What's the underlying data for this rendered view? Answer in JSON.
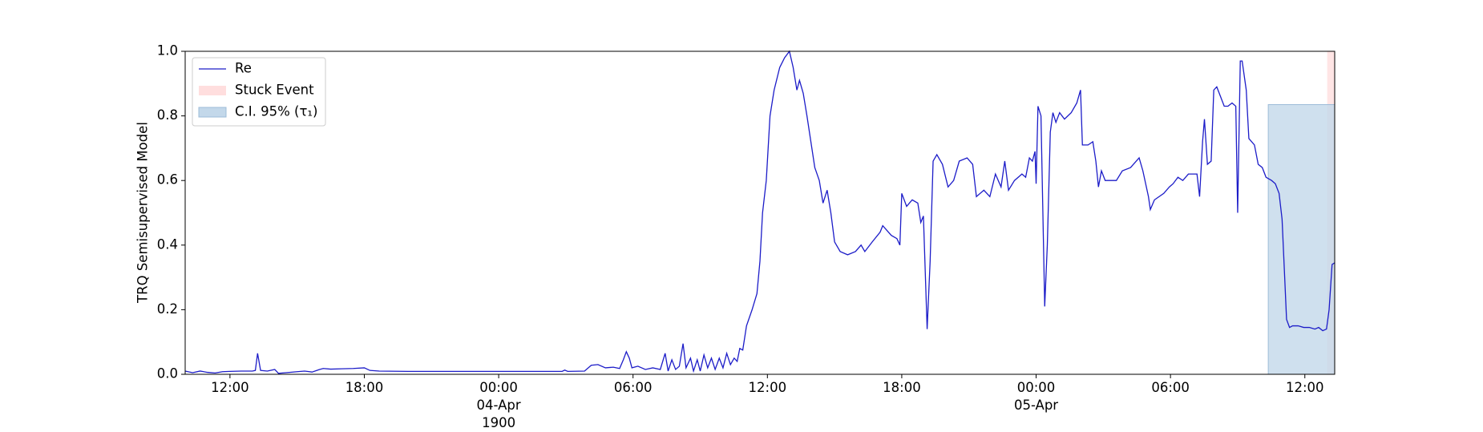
{
  "chart_data": {
    "type": "line",
    "y_label": "TRQ Semisupervised Model",
    "xlim": [
      "1900-04-03 10:00",
      "1900-04-05 13:20"
    ],
    "xticks": [
      {
        "value": "1900-04-03 12:00",
        "label": "12:00"
      },
      {
        "value": "1900-04-03 18:00",
        "label": "18:00"
      },
      {
        "value": "1900-04-04 00:00",
        "label": "00:00\n04-Apr\n1900"
      },
      {
        "value": "1900-04-04 06:00",
        "label": "06:00"
      },
      {
        "value": "1900-04-04 12:00",
        "label": "12:00"
      },
      {
        "value": "1900-04-04 18:00",
        "label": "18:00"
      },
      {
        "value": "1900-04-05 00:00",
        "label": "00:00\n05-Apr"
      },
      {
        "value": "1900-04-05 06:00",
        "label": "06:00"
      },
      {
        "value": "1900-04-05 12:00",
        "label": "12:00"
      }
    ],
    "ylim": [
      0,
      1
    ],
    "yticks": [
      {
        "value": 0,
        "label": "0.0"
      },
      0.2,
      0.4,
      0.6,
      0.8,
      {
        "value": 1,
        "label": "1.0"
      }
    ],
    "legend": "upper left",
    "x": [
      "1900-04-03 10:00",
      "1900-04-03 10:20",
      "1900-04-03 10:40",
      "1900-04-03 11:00",
      "1900-04-03 11:20",
      "1900-04-03 11:40",
      "1900-04-03 12:00",
      "1900-04-03 12:30",
      "1900-04-03 13:00",
      "1900-04-03 13:08",
      "1900-04-03 13:14",
      "1900-04-03 13:22",
      "1900-04-03 13:40",
      "1900-04-03 14:00",
      "1900-04-03 14:10",
      "1900-04-03 14:30",
      "1900-04-03 15:00",
      "1900-04-03 15:20",
      "1900-04-03 15:40",
      "1900-04-03 16:00",
      "1900-04-03 16:10",
      "1900-04-03 16:30",
      "1900-04-03 17:00",
      "1900-04-03 17:30",
      "1900-04-03 18:00",
      "1900-04-03 18:15",
      "1900-04-03 18:40",
      "1900-04-03 20:00",
      "1900-04-03 22:00",
      "1900-04-04 00:00",
      "1900-04-04 02:00",
      "1900-04-04 02:50",
      "1900-04-04 02:57",
      "1900-04-04 03:05",
      "1900-04-04 03:50",
      "1900-04-04 04:08",
      "1900-04-04 04:26",
      "1900-04-04 04:46",
      "1900-04-04 05:07",
      "1900-04-04 05:24",
      "1900-04-04 05:34",
      "1900-04-04 05:42",
      "1900-04-04 05:50",
      "1900-04-04 05:57",
      "1900-04-04 06:13",
      "1900-04-04 06:33",
      "1900-04-04 06:53",
      "1900-04-04 07:13",
      "1900-04-04 07:26",
      "1900-04-04 07:34",
      "1900-04-04 07:44",
      "1900-04-04 07:54",
      "1900-04-04 08:04",
      "1900-04-04 08:14",
      "1900-04-04 08:22",
      "1900-04-04 08:34",
      "1900-04-04 08:42",
      "1900-04-04 08:52",
      "1900-04-04 09:00",
      "1900-04-04 09:10",
      "1900-04-04 09:20",
      "1900-04-04 09:30",
      "1900-04-04 09:40",
      "1900-04-04 09:51",
      "1900-04-04 10:01",
      "1900-04-04 10:11",
      "1900-04-04 10:21",
      "1900-04-04 10:31",
      "1900-04-04 10:39",
      "1900-04-04 10:46",
      "1900-04-04 10:54",
      "1900-04-04 11:04",
      "1900-04-04 11:19",
      "1900-04-04 11:32",
      "1900-04-04 11:40",
      "1900-04-04 11:47",
      "1900-04-04 11:57",
      "1900-04-04 12:07",
      "1900-04-04 12:18",
      "1900-04-04 12:33",
      "1900-04-04 12:46",
      "1900-04-04 12:59",
      "1900-04-04 13:09",
      "1900-04-04 13:19",
      "1900-04-04 13:26",
      "1900-04-04 13:36",
      "1900-04-04 13:46",
      "1900-04-04 14:07",
      "1900-04-04 14:19",
      "1900-04-04 14:29",
      "1900-04-04 14:40",
      "1900-04-04 14:50",
      "1900-04-04 15:00",
      "1900-04-04 15:15",
      "1900-04-04 15:35",
      "1900-04-04 15:56",
      "1900-04-04 16:11",
      "1900-04-04 16:21",
      "1900-04-04 16:41",
      "1900-04-04 17:02",
      "1900-04-04 17:09",
      "1900-04-04 17:32",
      "1900-04-04 17:47",
      "1900-04-04 17:55",
      "1900-04-04 18:00",
      "1900-04-04 18:13",
      "1900-04-04 18:28",
      "1900-04-04 18:43",
      "1900-04-04 18:51",
      "1900-04-04 18:58",
      "1900-04-04 19:08",
      "1900-04-04 19:16",
      "1900-04-04 19:24",
      "1900-04-04 19:34",
      "1900-04-04 19:49",
      "1900-04-04 20:04",
      "1900-04-04 20:19",
      "1900-04-04 20:34",
      "1900-04-04 20:55",
      "1900-04-04 21:10",
      "1900-04-04 21:20",
      "1900-04-04 21:40",
      "1900-04-04 21:56",
      "1900-04-04 22:11",
      "1900-04-04 22:26",
      "1900-04-04 22:36",
      "1900-04-04 22:46",
      "1900-04-04 23:02",
      "1900-04-04 23:22",
      "1900-04-04 23:32",
      "1900-04-04 23:42",
      "1900-04-04 23:50",
      "1900-04-04 23:57",
      "1900-04-05 00:00",
      "1900-04-05 00:05",
      "1900-04-05 00:13",
      "1900-04-05 00:23",
      "1900-04-05 00:30",
      "1900-04-05 00:38",
      "1900-04-05 00:45",
      "1900-04-05 00:53",
      "1900-04-05 01:03",
      "1900-04-05 01:16",
      "1900-04-05 01:34",
      "1900-04-05 01:49",
      "1900-04-05 01:59",
      "1900-04-05 02:04",
      "1900-04-05 02:19",
      "1900-04-05 02:32",
      "1900-04-05 02:40",
      "1900-04-05 02:47",
      "1900-04-05 02:55",
      "1900-04-05 03:05",
      "1900-04-05 03:23",
      "1900-04-05 03:35",
      "1900-04-05 03:51",
      "1900-04-05 04:13",
      "1900-04-05 04:36",
      "1900-04-05 04:46",
      "1900-04-05 05:01",
      "1900-04-05 05:06",
      "1900-04-05 05:17",
      "1900-04-05 05:42",
      "1900-04-05 05:57",
      "1900-04-05 06:07",
      "1900-04-05 06:20",
      "1900-04-05 06:33",
      "1900-04-05 06:48",
      "1900-04-05 07:03",
      "1900-04-05 07:11",
      "1900-04-05 07:18",
      "1900-04-05 07:26",
      "1900-04-05 07:31",
      "1900-04-05 07:39",
      "1900-04-05 07:49",
      "1900-04-05 07:56",
      "1900-04-05 08:04",
      "1900-04-05 08:14",
      "1900-04-05 08:24",
      "1900-04-05 08:34",
      "1900-04-05 08:45",
      "1900-04-05 08:55",
      "1900-04-05 09:00",
      "1900-04-05 09:07",
      "1900-04-05 09:12",
      "1900-04-05 09:23",
      "1900-04-05 09:30",
      "1900-04-05 09:45",
      "1900-04-05 09:55",
      "1900-04-05 10:06",
      "1900-04-05 10:16",
      "1900-04-05 10:31",
      "1900-04-05 10:41",
      "1900-04-05 10:51",
      "1900-04-05 10:59",
      "1900-04-05 11:06",
      "1900-04-05 11:11",
      "1900-04-05 11:19",
      "1900-04-05 11:27",
      "1900-04-05 11:42",
      "1900-04-05 11:57",
      "1900-04-05 12:12",
      "1900-04-05 12:27",
      "1900-04-05 12:37",
      "1900-04-05 12:48",
      "1900-04-05 12:58",
      "1900-04-05 13:05",
      "1900-04-05 13:13",
      "1900-04-05 13:20"
    ],
    "series": [
      {
        "name": "Re",
        "color": "#1c1cc8",
        "values": [
          0.01,
          0.005,
          0.01,
          0.006,
          0.004,
          0.008,
          0.009,
          0.01,
          0.01,
          0.012,
          0.065,
          0.012,
          0.01,
          0.015,
          0.003,
          0.005,
          0.008,
          0.01,
          0.007,
          0.015,
          0.018,
          0.016,
          0.017,
          0.018,
          0.02,
          0.012,
          0.01,
          0.009,
          0.009,
          0.009,
          0.009,
          0.009,
          0.013,
          0.009,
          0.01,
          0.028,
          0.03,
          0.02,
          0.022,
          0.018,
          0.045,
          0.07,
          0.05,
          0.02,
          0.025,
          0.015,
          0.02,
          0.015,
          0.065,
          0.01,
          0.045,
          0.015,
          0.025,
          0.095,
          0.02,
          0.05,
          0.01,
          0.045,
          0.01,
          0.06,
          0.02,
          0.05,
          0.015,
          0.05,
          0.02,
          0.065,
          0.03,
          0.05,
          0.04,
          0.08,
          0.075,
          0.15,
          0.2,
          0.25,
          0.35,
          0.5,
          0.6,
          0.8,
          0.88,
          0.95,
          0.98,
          1.0,
          0.95,
          0.88,
          0.91,
          0.87,
          0.8,
          0.64,
          0.6,
          0.53,
          0.57,
          0.5,
          0.41,
          0.38,
          0.37,
          0.38,
          0.4,
          0.38,
          0.41,
          0.44,
          0.46,
          0.43,
          0.42,
          0.4,
          0.56,
          0.52,
          0.54,
          0.53,
          0.47,
          0.49,
          0.14,
          0.35,
          0.66,
          0.68,
          0.65,
          0.58,
          0.6,
          0.66,
          0.67,
          0.65,
          0.55,
          0.57,
          0.55,
          0.62,
          0.58,
          0.66,
          0.57,
          0.6,
          0.62,
          0.61,
          0.67,
          0.66,
          0.69,
          0.59,
          0.83,
          0.8,
          0.21,
          0.4,
          0.75,
          0.81,
          0.78,
          0.81,
          0.79,
          0.81,
          0.84,
          0.88,
          0.71,
          0.71,
          0.72,
          0.66,
          0.58,
          0.63,
          0.6,
          0.6,
          0.6,
          0.63,
          0.64,
          0.67,
          0.63,
          0.55,
          0.51,
          0.54,
          0.56,
          0.58,
          0.59,
          0.61,
          0.6,
          0.62,
          0.62,
          0.62,
          0.55,
          0.72,
          0.79,
          0.65,
          0.66,
          0.88,
          0.89,
          0.86,
          0.83,
          0.83,
          0.84,
          0.83,
          0.5,
          0.97,
          0.97,
          0.88,
          0.73,
          0.71,
          0.65,
          0.64,
          0.61,
          0.6,
          0.59,
          0.56,
          0.48,
          0.3,
          0.17,
          0.145,
          0.15,
          0.15,
          0.145,
          0.145,
          0.14,
          0.145,
          0.135,
          0.14,
          0.2,
          0.34,
          0.345
        ]
      }
    ],
    "spans": [
      {
        "name": "Stuck Event",
        "color": "#ffdede",
        "x": [
          "1900-04-05 13:00",
          "1900-04-05 13:20"
        ]
      },
      {
        "name": "C.I. 95% (τ₁)",
        "color": "#c3d8ea",
        "x": [
          "1900-04-05 10:22",
          "1900-04-05 13:20"
        ],
        "y": [
          0,
          0.835
        ]
      }
    ]
  }
}
